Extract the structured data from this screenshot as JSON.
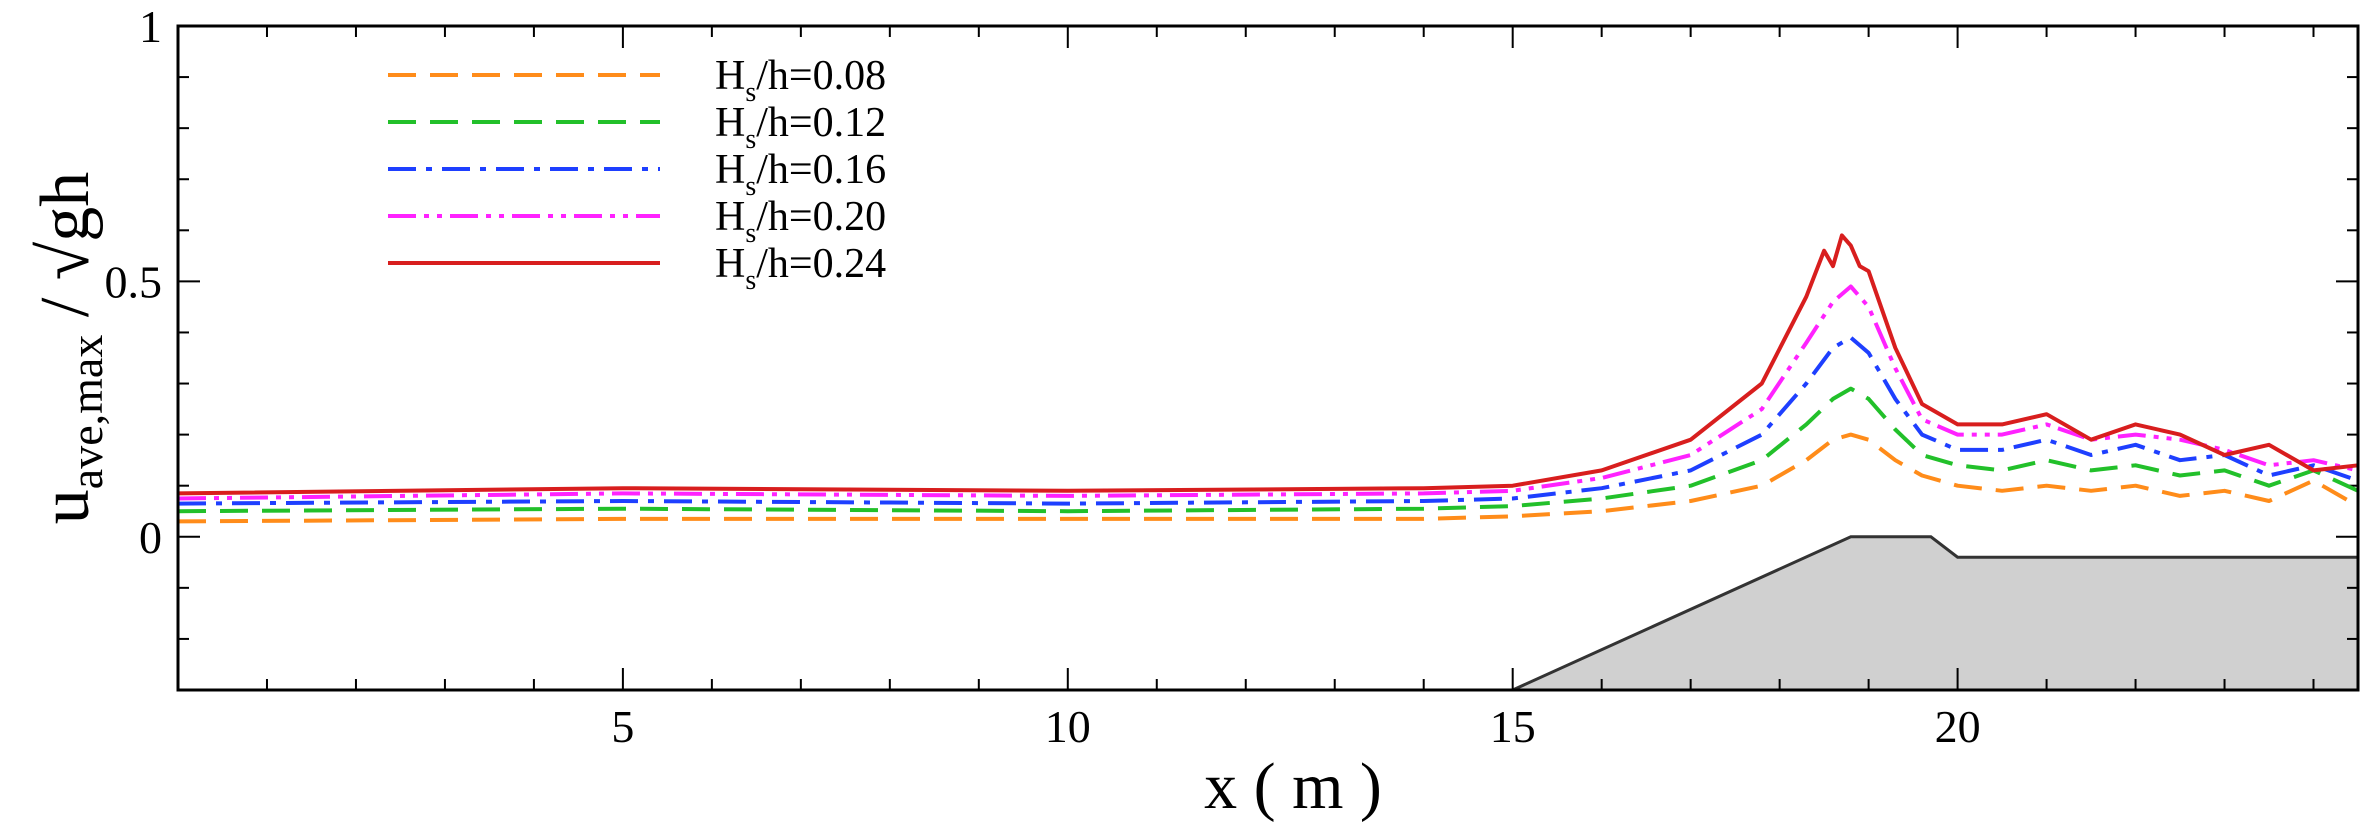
{
  "chart_data": {
    "type": "line",
    "xlabel": "x ( m )",
    "ylabel": "u_ave,max / √gh",
    "xlim": [
      0,
      24.5
    ],
    "ylim": [
      -0.3,
      1.0
    ],
    "x_ticks": [
      5,
      10,
      15,
      20
    ],
    "y_ticks": [
      0,
      0.5,
      1
    ],
    "x_tick_labels": [
      "5",
      "10",
      "15",
      "20"
    ],
    "y_tick_labels": [
      "0",
      "0.5",
      "1"
    ],
    "grid": false,
    "legend_position": "top-left",
    "series": [
      {
        "name": "H_s/h=0.08",
        "legend_label": "Hs/h=0.08",
        "color": "#FF8C1A",
        "dash": "dashed",
        "x": [
          0,
          5,
          10,
          14,
          15,
          16,
          17,
          17.8,
          18.3,
          18.6,
          18.8,
          19.0,
          19.3,
          19.6,
          20.0,
          20.5,
          21.0,
          21.5,
          22.0,
          22.5,
          23.0,
          23.5,
          24.0,
          24.5
        ],
        "y": [
          0.03,
          0.035,
          0.035,
          0.035,
          0.04,
          0.05,
          0.07,
          0.1,
          0.15,
          0.19,
          0.2,
          0.19,
          0.15,
          0.12,
          0.1,
          0.09,
          0.1,
          0.09,
          0.1,
          0.08,
          0.09,
          0.07,
          0.11,
          0.06
        ]
      },
      {
        "name": "H_s/h=0.12",
        "legend_label": "Hs/h=0.12",
        "color": "#22C02A",
        "dash": "dashed",
        "x": [
          0,
          5,
          10,
          14,
          15,
          16,
          17,
          17.8,
          18.3,
          18.6,
          18.8,
          19.0,
          19.3,
          19.6,
          20.0,
          20.5,
          21.0,
          21.5,
          22.0,
          22.5,
          23.0,
          23.5,
          24.0,
          24.5
        ],
        "y": [
          0.05,
          0.055,
          0.05,
          0.055,
          0.06,
          0.075,
          0.1,
          0.15,
          0.22,
          0.27,
          0.29,
          0.27,
          0.21,
          0.16,
          0.14,
          0.13,
          0.15,
          0.13,
          0.14,
          0.12,
          0.13,
          0.1,
          0.13,
          0.09
        ]
      },
      {
        "name": "H_s/h=0.16",
        "legend_label": "Hs/h=0.16",
        "color": "#1E3FFF",
        "dash": "dashdot",
        "x": [
          0,
          5,
          10,
          14,
          15,
          16,
          17,
          17.8,
          18.3,
          18.6,
          18.8,
          19.0,
          19.3,
          19.6,
          20.0,
          20.5,
          21.0,
          21.5,
          22.0,
          22.5,
          23.0,
          23.5,
          24.0,
          24.5
        ],
        "y": [
          0.065,
          0.07,
          0.065,
          0.07,
          0.075,
          0.095,
          0.13,
          0.2,
          0.3,
          0.37,
          0.39,
          0.36,
          0.27,
          0.2,
          0.17,
          0.17,
          0.19,
          0.16,
          0.18,
          0.15,
          0.16,
          0.12,
          0.14,
          0.11
        ]
      },
      {
        "name": "H_s/h=0.20",
        "legend_label": "Hs/h=0.20",
        "color": "#FF22FF",
        "dash": "dashdotdot",
        "x": [
          0,
          5,
          10,
          14,
          15,
          16,
          17,
          17.8,
          18.3,
          18.6,
          18.8,
          19.0,
          19.3,
          19.6,
          20.0,
          20.5,
          21.0,
          21.5,
          22.0,
          22.5,
          23.0,
          23.5,
          24.0,
          24.5
        ],
        "y": [
          0.075,
          0.085,
          0.08,
          0.085,
          0.09,
          0.115,
          0.16,
          0.25,
          0.38,
          0.46,
          0.49,
          0.45,
          0.33,
          0.23,
          0.2,
          0.2,
          0.22,
          0.19,
          0.2,
          0.19,
          0.17,
          0.14,
          0.15,
          0.13
        ]
      },
      {
        "name": "H_s/h=0.24",
        "legend_label": "Hs/h=0.24",
        "color": "#D81E1E",
        "dash": "solid",
        "x": [
          0,
          5,
          10,
          14,
          15,
          16,
          17,
          17.8,
          18.3,
          18.5,
          18.6,
          18.7,
          18.8,
          18.9,
          19.0,
          19.3,
          19.6,
          20.0,
          20.5,
          21.0,
          21.5,
          22.0,
          22.5,
          23.0,
          23.5,
          24.0,
          24.5
        ],
        "y": [
          0.085,
          0.095,
          0.09,
          0.095,
          0.1,
          0.13,
          0.19,
          0.3,
          0.47,
          0.56,
          0.53,
          0.59,
          0.57,
          0.53,
          0.52,
          0.37,
          0.26,
          0.22,
          0.22,
          0.24,
          0.19,
          0.22,
          0.2,
          0.16,
          0.18,
          0.13,
          0.14
        ]
      }
    ],
    "bathymetry": {
      "fill": "#D0D0D0",
      "x": [
        15.0,
        18.8,
        19.7,
        20.0,
        24.5
      ],
      "y": [
        -0.3,
        0.0,
        0.0,
        -0.04,
        -0.04
      ]
    }
  },
  "legend": {
    "items": [
      {
        "prefix": "H",
        "sub": "s",
        "suffix": "/h=0.08"
      },
      {
        "prefix": "H",
        "sub": "s",
        "suffix": "/h=0.12"
      },
      {
        "prefix": "H",
        "sub": "s",
        "suffix": "/h=0.16"
      },
      {
        "prefix": "H",
        "sub": "s",
        "suffix": "/h=0.20"
      },
      {
        "prefix": "H",
        "sub": "s",
        "suffix": "/h=0.24"
      }
    ]
  },
  "axes": {
    "xlabel": "x ( m )",
    "ylabel_main": "u",
    "ylabel_sub": "ave,max",
    "ylabel_rest": " / √gh"
  }
}
